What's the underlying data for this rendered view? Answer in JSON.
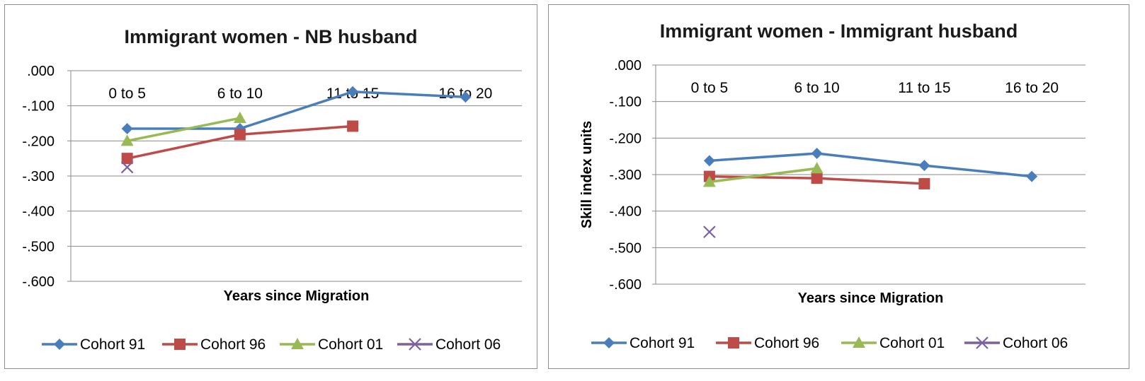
{
  "chart_data": [
    {
      "type": "line",
      "title": "Immigrant women - NB husband",
      "xlabel": "Years since Migration",
      "ylabel": "",
      "categories": [
        "0 to 5",
        "6 to 10",
        "11 to 15",
        "16 to 20"
      ],
      "ylim": [
        -0.6,
        0.0
      ],
      "yticks": [
        ".000",
        "-.100",
        "-.200",
        "-.300",
        "-.400",
        "-.500",
        "-.600"
      ],
      "grid": true,
      "legend": "bottom",
      "series": [
        {
          "name": "Cohort 91",
          "values": [
            -0.165,
            -0.165,
            -0.06,
            -0.075
          ],
          "color": "#4a7ebb",
          "marker": "diamond"
        },
        {
          "name": "Cohort 96",
          "values": [
            -0.25,
            -0.182,
            -0.158,
            null
          ],
          "color": "#be4b48",
          "marker": "square"
        },
        {
          "name": "Cohort 01",
          "values": [
            -0.2,
            -0.135,
            null,
            null
          ],
          "color": "#98b954",
          "marker": "triangle"
        },
        {
          "name": "Cohort 06",
          "values": [
            -0.275,
            null,
            null,
            null
          ],
          "color": "#7d60a0",
          "marker": "x"
        }
      ]
    },
    {
      "type": "line",
      "title": "Immigrant women - Immigrant husband",
      "xlabel": "Years since Migration",
      "ylabel": "Skill index units",
      "categories": [
        "0 to 5",
        "6 to 10",
        "11 to 15",
        "16 to 20"
      ],
      "ylim": [
        -0.6,
        0.0
      ],
      "yticks": [
        ".000",
        "-.100",
        "-.200",
        "-.300",
        "-.400",
        "-.500",
        "-.600"
      ],
      "grid": true,
      "legend": "bottom",
      "series": [
        {
          "name": "Cohort 91",
          "values": [
            -0.262,
            -0.242,
            -0.275,
            -0.305
          ],
          "color": "#4a7ebb",
          "marker": "diamond"
        },
        {
          "name": "Cohort 96",
          "values": [
            -0.305,
            -0.31,
            -0.325,
            null
          ],
          "color": "#be4b48",
          "marker": "square"
        },
        {
          "name": "Cohort 01",
          "values": [
            -0.32,
            -0.283,
            null,
            null
          ],
          "color": "#98b954",
          "marker": "triangle"
        },
        {
          "name": "Cohort 06",
          "values": [
            -0.457,
            null,
            null,
            null
          ],
          "color": "#7d60a0",
          "marker": "x"
        }
      ]
    }
  ]
}
